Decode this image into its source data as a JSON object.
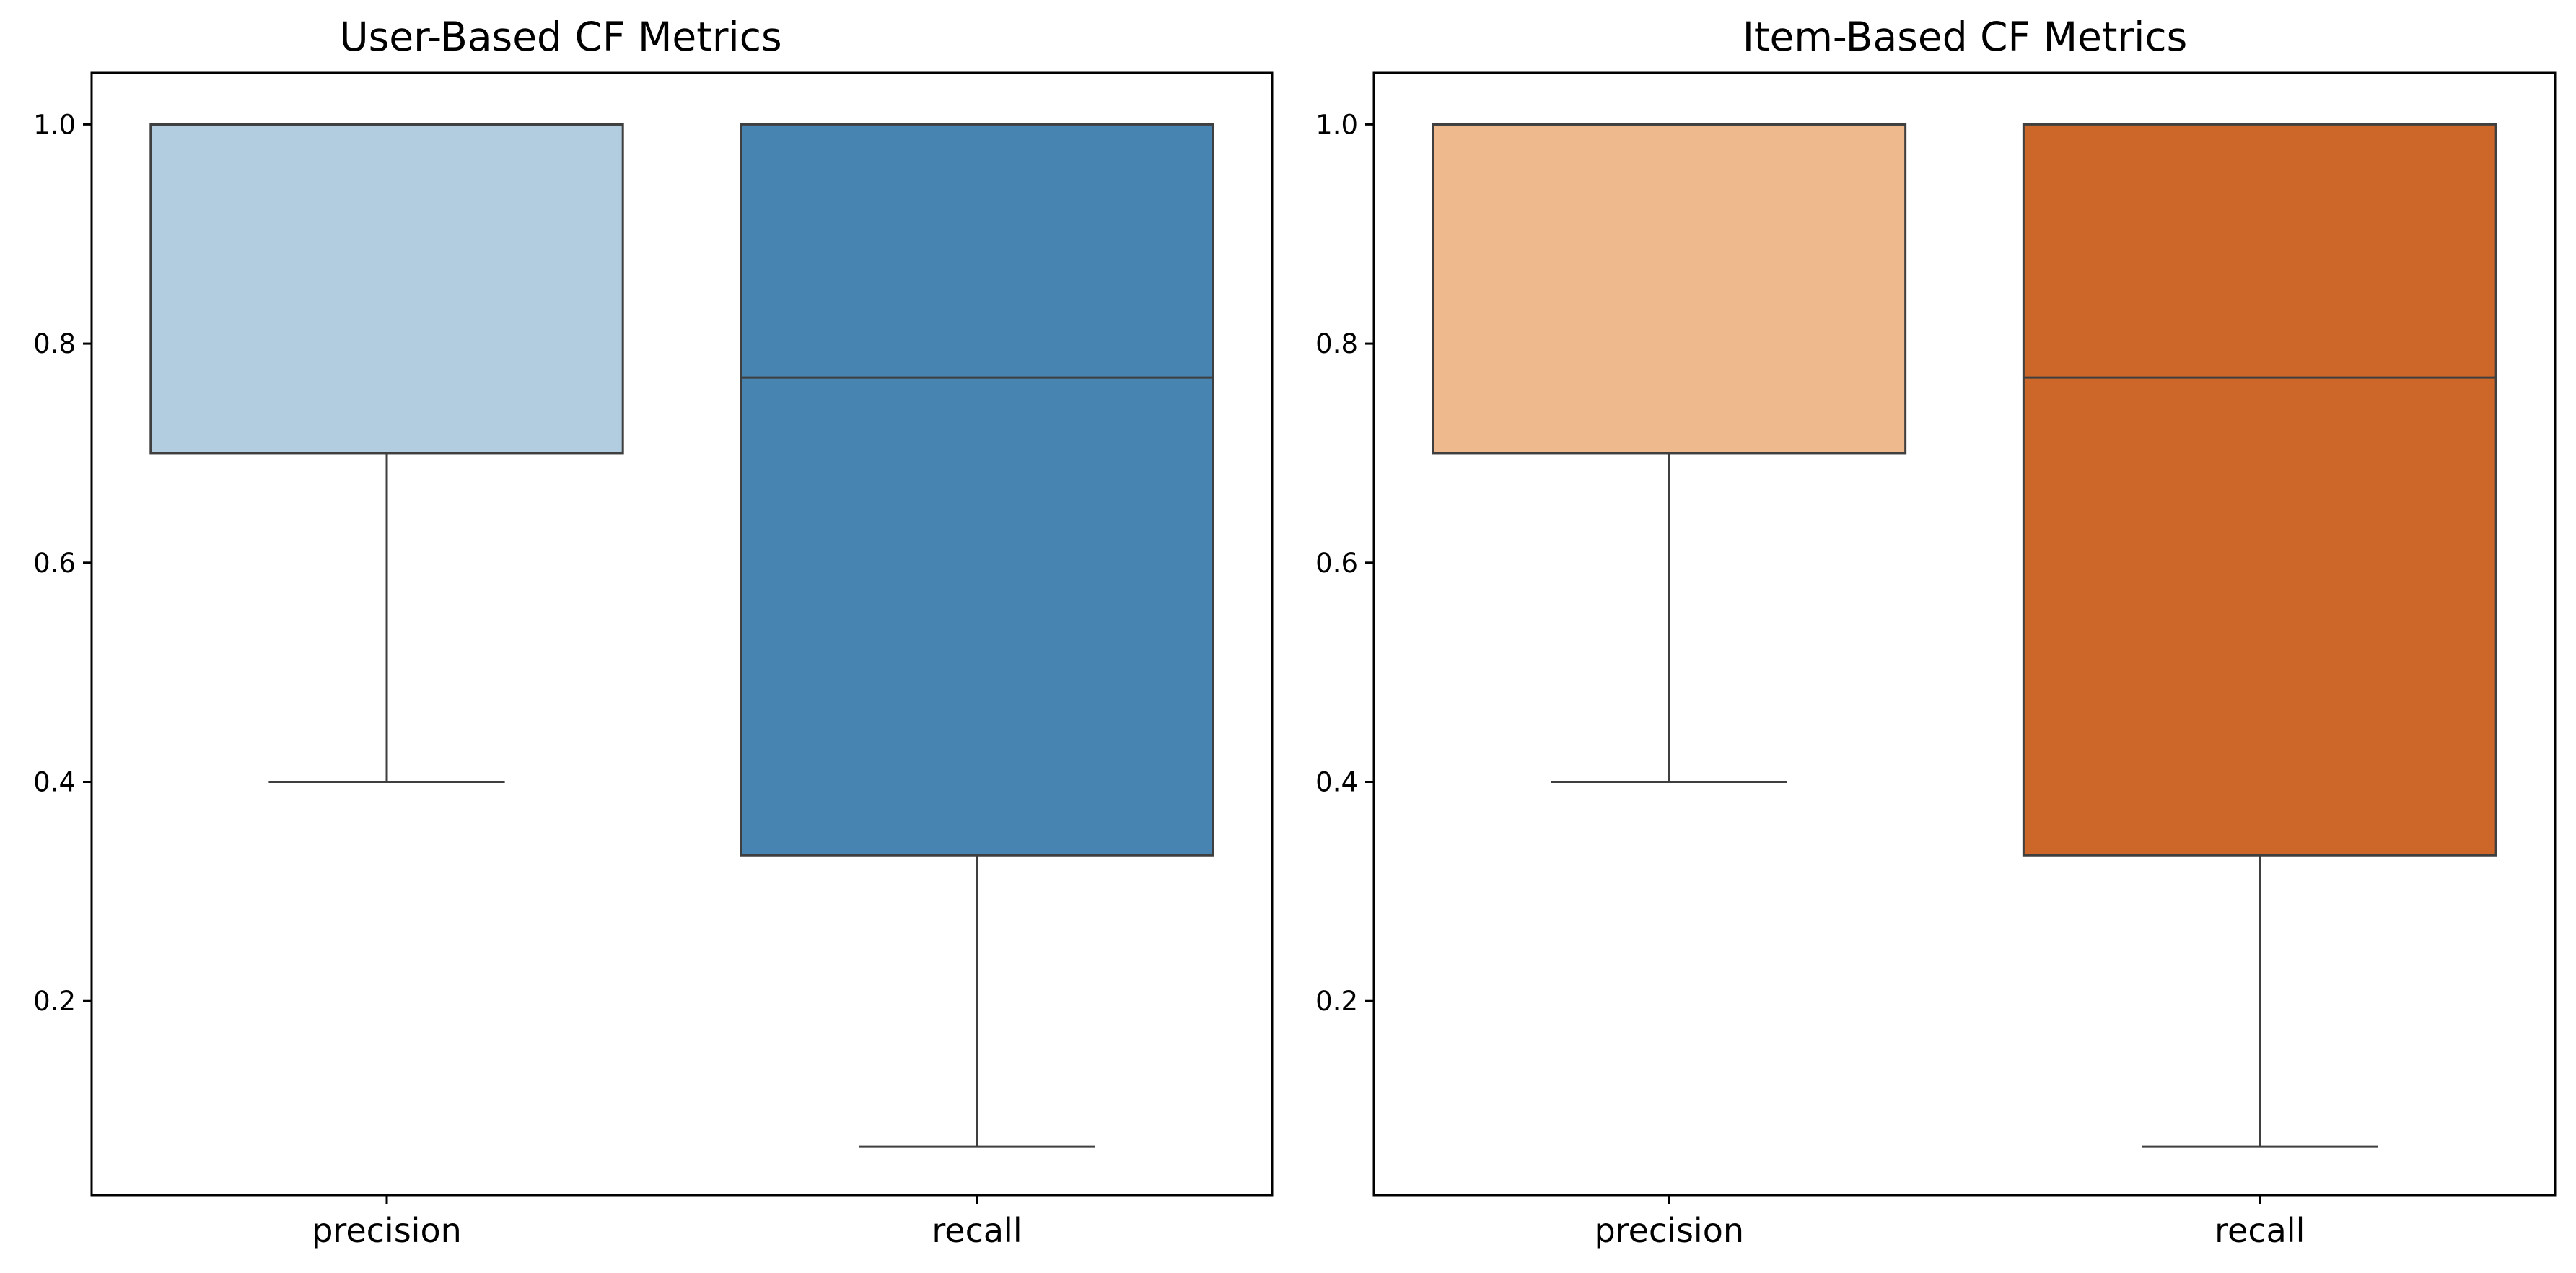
{
  "chart_data": [
    {
      "type": "box",
      "title": "User-Based CF Metrics",
      "categories": [
        "precision",
        "recall"
      ],
      "ylim": [
        0.023,
        1.047
      ],
      "yticks": [
        0.2,
        0.4,
        0.6,
        0.8,
        1.0
      ],
      "ytick_labels": [
        "0.2",
        "0.4",
        "0.6",
        "0.8",
        "1.0"
      ],
      "grid": false,
      "boxes": [
        {
          "category": "precision",
          "whisker_low": 0.4,
          "q1": 0.7,
          "median": 1.0,
          "q3": 1.0,
          "whisker_high": 1.0,
          "color": "#b3cde0"
        },
        {
          "category": "recall",
          "whisker_low": 0.067,
          "q1": 0.333,
          "median": 0.769,
          "q3": 1.0,
          "whisker_high": 1.0,
          "color": "#4884b1"
        }
      ]
    },
    {
      "type": "box",
      "title": "Item-Based CF Metrics",
      "categories": [
        "precision",
        "recall"
      ],
      "ylim": [
        0.023,
        1.047
      ],
      "yticks": [
        0.2,
        0.4,
        0.6,
        0.8,
        1.0
      ],
      "ytick_labels": [
        "0.2",
        "0.4",
        "0.6",
        "0.8",
        "1.0"
      ],
      "grid": false,
      "boxes": [
        {
          "category": "precision",
          "whisker_low": 0.4,
          "q1": 0.7,
          "median": 1.0,
          "q3": 1.0,
          "whisker_high": 1.0,
          "color": "#edb98d"
        },
        {
          "category": "recall",
          "whisker_low": 0.067,
          "q1": 0.333,
          "median": 0.769,
          "q3": 1.0,
          "whisker_high": 1.0,
          "color": "#cd6729"
        }
      ]
    }
  ],
  "colors": {
    "edge": "#3f3f3f",
    "axes": "#000000",
    "background": "#ffffff"
  }
}
